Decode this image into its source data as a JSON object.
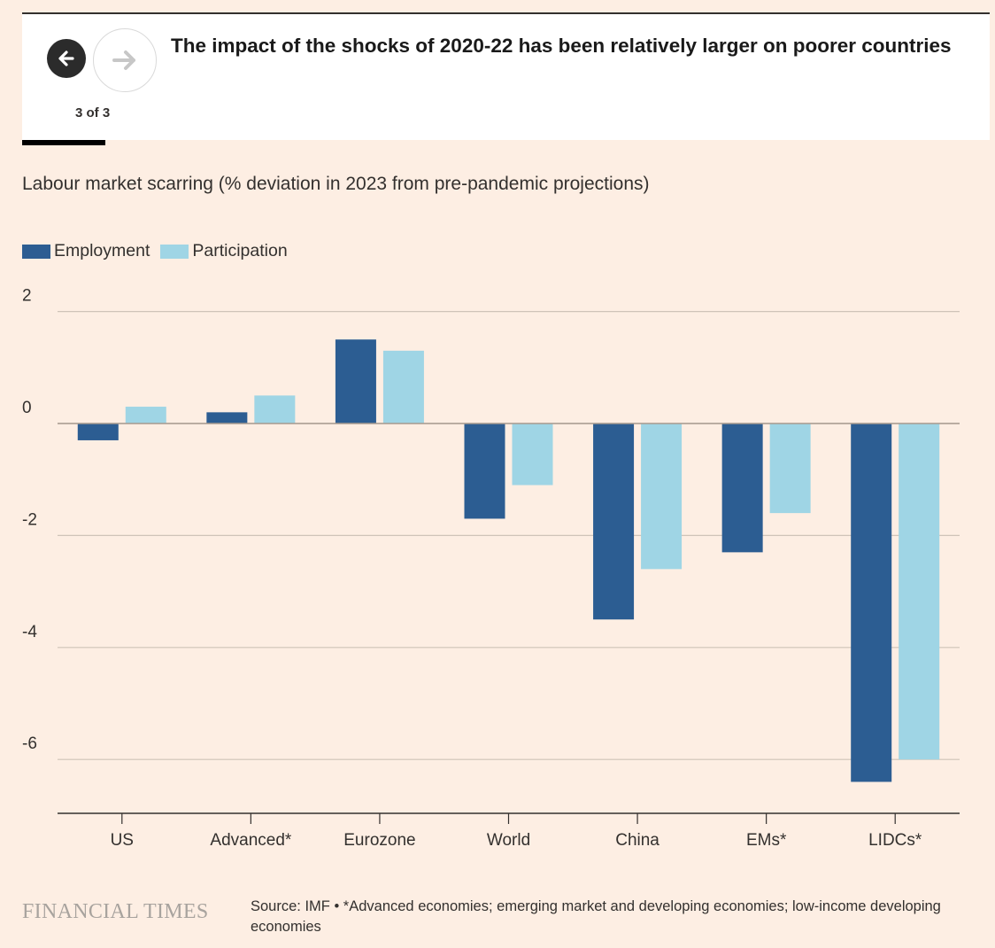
{
  "header": {
    "title": "The impact of the shocks of 2020-22 has been relatively larger on poorer countries",
    "pager": "3 of 3"
  },
  "chart_data": {
    "type": "bar",
    "title": "Labour market scarring (% deviation in 2023 from pre-pandemic projections)",
    "categories": [
      "US",
      "Advanced*",
      "Eurozone",
      "World",
      "China",
      "EMs*",
      "LIDCs*"
    ],
    "series": [
      {
        "name": "Employment",
        "color": "#2c5d92",
        "values": [
          -0.3,
          0.2,
          1.5,
          -1.7,
          -3.5,
          -2.3,
          -6.4
        ]
      },
      {
        "name": "Participation",
        "color": "#9fd5e5",
        "values": [
          0.3,
          0.5,
          1.3,
          -1.1,
          -2.6,
          -1.6,
          -6.0
        ]
      }
    ],
    "yticks": [
      2,
      0,
      -2,
      -4,
      -6
    ],
    "ylim": [
      -7,
      2
    ],
    "grid": true,
    "legend_position": "top-left"
  },
  "footer": {
    "brand": "FINANCIAL TIMES",
    "source": "Source: IMF • *Advanced economies; emerging market and developing economies; low-income developing economies"
  }
}
